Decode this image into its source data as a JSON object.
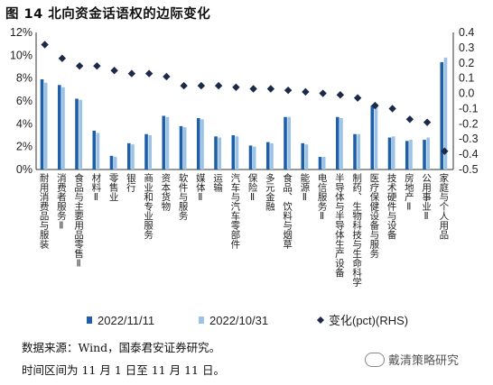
{
  "header": {
    "title": "图 14 北向资金话语权的边际变化"
  },
  "footer": {
    "source": "数据来源：Wind，国泰君安证券研究。",
    "period": "时间区间为 11 月 1 日至 11 月 11 日。",
    "watermark": "戴清策略研究"
  },
  "chart_data": {
    "type": "bar",
    "categories": [
      "耐用消费品与服装",
      "消费者服务Ⅱ",
      "食品与主要用品零售Ⅱ",
      "材料Ⅱ",
      "零售业",
      "银行",
      "商业和专业服务",
      "资本货物",
      "软件与服务",
      "媒体Ⅱ",
      "运输",
      "汽车与汽车零部件",
      "保险Ⅱ",
      "多元金融",
      "食品、饮料与烟草",
      "能源Ⅱ",
      "电信服务Ⅱ",
      "半导体与半导体生产设备",
      "制药、生物科技与生命科学",
      "医疗保健设备与服务",
      "技术硬件与设备",
      "房地产Ⅱ",
      "公用事业Ⅱ",
      "家庭与个人用品"
    ],
    "series": [
      {
        "name": "2022/11/11",
        "axis": "left",
        "kind": "bar",
        "color": "#1f5fa8",
        "values": [
          7.9,
          7.4,
          6.2,
          3.4,
          1.2,
          2.3,
          3.1,
          4.7,
          3.8,
          4.5,
          2.9,
          3.0,
          2.1,
          2.4,
          4.6,
          2.3,
          1.1,
          4.6,
          3.1,
          5.6,
          2.8,
          2.5,
          2.6,
          9.4
        ]
      },
      {
        "name": "2022/10/31",
        "axis": "left",
        "kind": "bar",
        "color": "#9cc3e6",
        "values": [
          7.6,
          7.2,
          6.1,
          3.2,
          1.1,
          2.2,
          3.0,
          4.6,
          3.7,
          4.4,
          2.8,
          2.9,
          2.0,
          2.3,
          4.6,
          2.2,
          1.1,
          4.5,
          3.1,
          5.7,
          2.9,
          2.6,
          2.8,
          9.8
        ]
      },
      {
        "name": "变化(pct)(RHS)",
        "axis": "right",
        "kind": "marker",
        "color": "#1c2a4a",
        "values": [
          0.32,
          0.23,
          0.18,
          0.18,
          0.15,
          0.13,
          0.13,
          0.11,
          0.05,
          0.05,
          0.05,
          0.04,
          0.03,
          0.03,
          0.02,
          0.01,
          0.0,
          -0.01,
          -0.03,
          -0.08,
          -0.1,
          -0.17,
          -0.19,
          -0.38
        ]
      }
    ],
    "left_axis": {
      "ylim": [
        0,
        12
      ],
      "ticks": [
        "0%",
        "2%",
        "4%",
        "6%",
        "8%",
        "10%",
        "12%"
      ]
    },
    "right_axis": {
      "ylim": [
        -0.5,
        0.4
      ],
      "ticks": [
        "-0.5",
        "-0.4",
        "-0.3",
        "-0.2",
        "-0.1",
        "0.0",
        "0.1",
        "0.2",
        "0.3",
        "0.4"
      ]
    },
    "grid": false,
    "legend_position": "bottom"
  }
}
